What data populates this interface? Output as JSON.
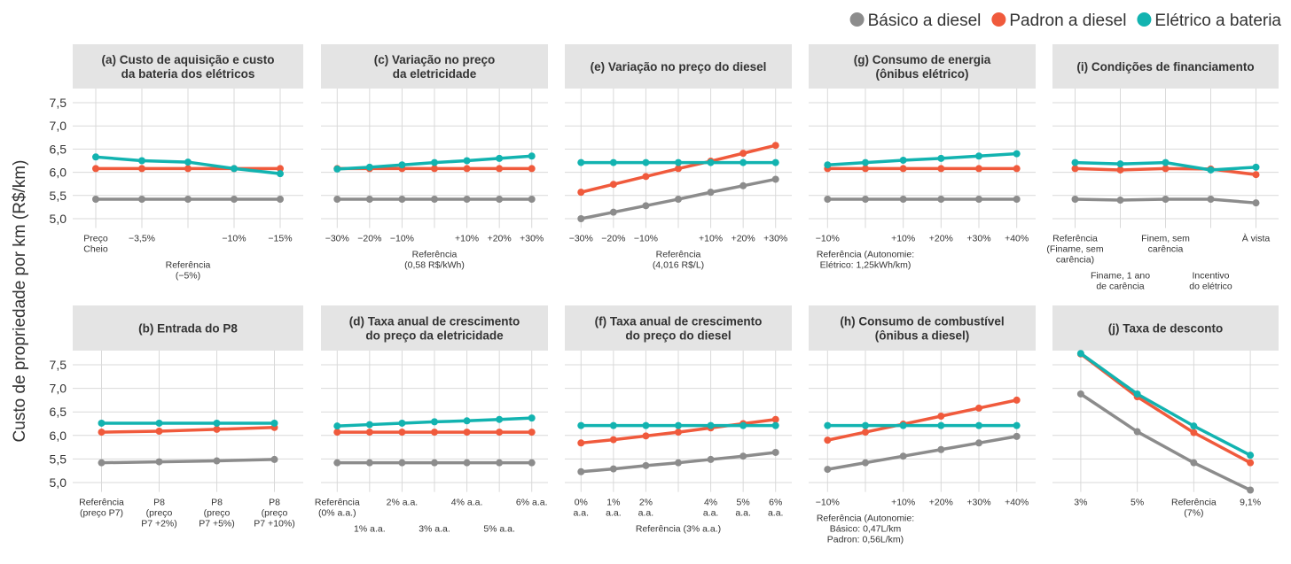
{
  "y_axis_label": "Custo de propriedade por km (R$/km)",
  "chart_data": [
    {
      "type": "line",
      "title": "(a) Custo de aquisição e custo\nda bateria dos elétricos",
      "categories": [
        "Preço\nCheio",
        "−3,5%",
        "Referência\n(−5%)",
        "−10%",
        "−15%"
      ],
      "ylim": [
        4.8,
        7.8
      ],
      "yticks": [
        {
          "value": 7.5,
          "label": "7,5"
        },
        {
          "value": 7.0,
          "label": "7,0"
        },
        {
          "value": 6.5,
          "label": "6,5"
        },
        {
          "value": 6.0,
          "label": "6,0"
        },
        {
          "value": 5.5,
          "label": "5,5"
        },
        {
          "value": 5.0,
          "label": "5,0"
        }
      ],
      "series": [
        {
          "name": "Básico a diesel",
          "color": "#8c8c8c",
          "values": [
            5.42,
            5.42,
            5.42,
            5.42,
            5.42
          ]
        },
        {
          "name": "Padron a diesel",
          "color": "#f05a3c",
          "values": [
            6.08,
            6.08,
            6.08,
            6.08,
            6.08
          ]
        },
        {
          "name": "Elétrico a bateria",
          "color": "#12b3b0",
          "values": [
            6.33,
            6.25,
            6.22,
            6.08,
            5.97
          ]
        }
      ]
    },
    {
      "type": "line",
      "title": "(c) Variação no preço\nda eletricidade",
      "categories": [
        "−30%",
        "−20%",
        "−10%",
        "Referência\n(0,58 R$/kWh)",
        "+10%",
        "+20%",
        "+30%"
      ],
      "ylim": [
        4.8,
        7.8
      ],
      "series": [
        {
          "name": "Básico a diesel",
          "color": "#8c8c8c",
          "values": [
            5.42,
            5.42,
            5.42,
            5.42,
            5.42,
            5.42,
            5.42
          ]
        },
        {
          "name": "Padron a diesel",
          "color": "#f05a3c",
          "values": [
            6.08,
            6.08,
            6.08,
            6.08,
            6.08,
            6.08,
            6.08
          ]
        },
        {
          "name": "Elétrico a bateria",
          "color": "#12b3b0",
          "values": [
            6.07,
            6.11,
            6.16,
            6.21,
            6.25,
            6.3,
            6.35
          ]
        }
      ]
    },
    {
      "type": "line",
      "title": "(e) Variação no preço do diesel",
      "categories": [
        "−30%",
        "−20%",
        "−10%",
        "Referência\n(4,016 R$/L)",
        "+10%",
        "+20%",
        "+30%"
      ],
      "ylim": [
        4.8,
        7.8
      ],
      "series": [
        {
          "name": "Básico a diesel",
          "color": "#8c8c8c",
          "values": [
            5.0,
            5.14,
            5.28,
            5.42,
            5.57,
            5.71,
            5.85
          ]
        },
        {
          "name": "Padron a diesel",
          "color": "#f05a3c",
          "values": [
            5.57,
            5.74,
            5.91,
            6.08,
            6.24,
            6.41,
            6.58
          ]
        },
        {
          "name": "Elétrico a bateria",
          "color": "#12b3b0",
          "values": [
            6.21,
            6.21,
            6.21,
            6.21,
            6.21,
            6.21,
            6.21
          ]
        }
      ]
    },
    {
      "type": "line",
      "title": "(g) Consumo de energia\n(ônibus elétrico)",
      "categories": [
        "−10%",
        "Referência (Autonomie:\nElétrico: 1,25kWh/km)",
        "+10%",
        "+20%",
        "+30%",
        "+40%"
      ],
      "ylim": [
        4.8,
        7.8
      ],
      "series": [
        {
          "name": "Básico a diesel",
          "color": "#8c8c8c",
          "values": [
            5.42,
            5.42,
            5.42,
            5.42,
            5.42,
            5.42
          ]
        },
        {
          "name": "Padron a diesel",
          "color": "#f05a3c",
          "values": [
            6.08,
            6.08,
            6.08,
            6.08,
            6.08,
            6.08
          ]
        },
        {
          "name": "Elétrico a bateria",
          "color": "#12b3b0",
          "values": [
            6.16,
            6.21,
            6.26,
            6.3,
            6.35,
            6.4
          ]
        }
      ]
    },
    {
      "type": "line",
      "title": "(i) Condições de financiamento",
      "categories": [
        "Referência\n(Finame, sem\ncarência)",
        "Finame, 1 ano\nde carência",
        "Finem, sem\ncarência",
        "Incentivo\ndo elétrico",
        "À vista"
      ],
      "ylim": [
        4.8,
        7.8
      ],
      "series": [
        {
          "name": "Básico a diesel",
          "color": "#8c8c8c",
          "values": [
            5.42,
            5.4,
            5.42,
            5.42,
            5.34
          ]
        },
        {
          "name": "Padron a diesel",
          "color": "#f05a3c",
          "values": [
            6.08,
            6.05,
            6.08,
            6.07,
            5.95
          ]
        },
        {
          "name": "Elétrico a bateria",
          "color": "#12b3b0",
          "values": [
            6.21,
            6.18,
            6.21,
            6.05,
            6.11
          ]
        }
      ]
    },
    {
      "type": "line",
      "title": "(b) Entrada do P8",
      "categories": [
        "Referência\n(preço P7)",
        "P8\n(preço\nP7 +2%)",
        "P8\n(preço\nP7 +5%)",
        "P8\n(preço\nP7 +10%)"
      ],
      "ylim": [
        4.8,
        7.8
      ],
      "yticks": [
        {
          "value": 7.5,
          "label": "7,5"
        },
        {
          "value": 7.0,
          "label": "7,0"
        },
        {
          "value": 6.5,
          "label": "6,5"
        },
        {
          "value": 6.0,
          "label": "6,0"
        },
        {
          "value": 5.5,
          "label": "5,5"
        },
        {
          "value": 5.0,
          "label": "5,0"
        }
      ],
      "series": [
        {
          "name": "Básico a diesel",
          "color": "#8c8c8c",
          "values": [
            5.42,
            5.44,
            5.46,
            5.49
          ]
        },
        {
          "name": "Padron a diesel",
          "color": "#f05a3c",
          "values": [
            6.07,
            6.09,
            6.13,
            6.17
          ]
        },
        {
          "name": "Elétrico a bateria",
          "color": "#12b3b0",
          "values": [
            6.26,
            6.26,
            6.26,
            6.26
          ]
        }
      ]
    },
    {
      "type": "line",
      "title": "(d) Taxa anual de crescimento\ndo preço da eletricidade",
      "categories": [
        "Referência\n(0% a.a.)",
        "1% a.a.",
        "2% a.a.",
        "3% a.a.",
        "4% a.a.",
        "5% a.a.",
        "6% a.a."
      ],
      "ylim": [
        4.8,
        7.8
      ],
      "series": [
        {
          "name": "Básico a diesel",
          "color": "#8c8c8c",
          "values": [
            5.42,
            5.42,
            5.42,
            5.42,
            5.42,
            5.42,
            5.42
          ]
        },
        {
          "name": "Padron a diesel",
          "color": "#f05a3c",
          "values": [
            6.07,
            6.07,
            6.07,
            6.07,
            6.07,
            6.07,
            6.07
          ]
        },
        {
          "name": "Elétrico a bateria",
          "color": "#12b3b0",
          "values": [
            6.2,
            6.23,
            6.26,
            6.29,
            6.31,
            6.34,
            6.37
          ]
        }
      ]
    },
    {
      "type": "line",
      "title": "(f) Taxa anual de crescimento\ndo preço do diesel",
      "categories": [
        "0%\na.a.",
        "1%\na.a.",
        "2%\na.a.",
        "Referência (3% a.a.)",
        "4%\na.a.",
        "5%\na.a.",
        "6%\na.a."
      ],
      "ylim": [
        4.8,
        7.8
      ],
      "series": [
        {
          "name": "Básico a diesel",
          "color": "#8c8c8c",
          "values": [
            5.23,
            5.29,
            5.36,
            5.42,
            5.49,
            5.56,
            5.64
          ]
        },
        {
          "name": "Padron a diesel",
          "color": "#f05a3c",
          "values": [
            5.84,
            5.91,
            5.99,
            6.07,
            6.16,
            6.25,
            6.34
          ]
        },
        {
          "name": "Elétrico a bateria",
          "color": "#12b3b0",
          "values": [
            6.21,
            6.21,
            6.21,
            6.21,
            6.21,
            6.21,
            6.21
          ]
        }
      ]
    },
    {
      "type": "line",
      "title": "(h) Consumo de combustível\n(ônibus a diesel)",
      "categories": [
        "−10%",
        "Referência (Autonomie:\nBásico: 0,47L/km\nPadron: 0,56L/km)",
        "+10%",
        "+20%",
        "+30%",
        "+40%"
      ],
      "ylim": [
        4.8,
        7.8
      ],
      "series": [
        {
          "name": "Básico a diesel",
          "color": "#8c8c8c",
          "values": [
            5.28,
            5.42,
            5.56,
            5.7,
            5.84,
            5.98
          ]
        },
        {
          "name": "Padron a diesel",
          "color": "#f05a3c",
          "values": [
            5.9,
            6.07,
            6.24,
            6.41,
            6.58,
            6.75
          ]
        },
        {
          "name": "Elétrico a bateria",
          "color": "#12b3b0",
          "values": [
            6.21,
            6.21,
            6.21,
            6.21,
            6.21,
            6.21
          ]
        }
      ]
    },
    {
      "type": "line",
      "title": "(j) Taxa de desconto",
      "categories": [
        "3%",
        "5%",
        "Referência\n(7%)",
        "9,1%"
      ],
      "ylim": [
        4.8,
        7.8
      ],
      "series": [
        {
          "name": "Básico a diesel",
          "color": "#8c8c8c",
          "values": [
            6.88,
            6.08,
            5.42,
            4.84
          ]
        },
        {
          "name": "Padron a diesel",
          "color": "#f05a3c",
          "values": [
            7.73,
            6.82,
            6.06,
            5.42
          ]
        },
        {
          "name": "Elétrico a bateria",
          "color": "#12b3b0",
          "values": [
            7.74,
            6.88,
            6.2,
            5.58
          ]
        }
      ]
    }
  ]
}
